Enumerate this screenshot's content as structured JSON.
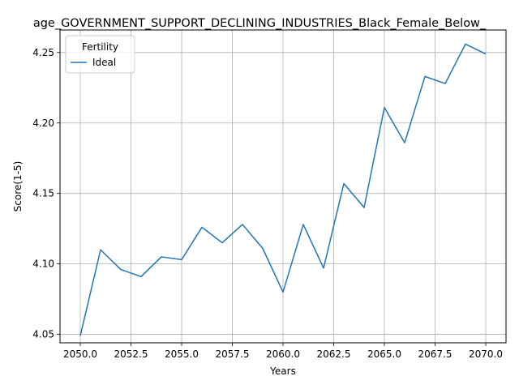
{
  "chart_data": {
    "type": "line",
    "title": "age_GOVERNMENT_SUPPORT_DECLINING_INDUSTRIES_Black_Female_Below_",
    "xlabel": "Years",
    "ylabel": "Score(1-5)",
    "xlim": [
      2049,
      2071
    ],
    "ylim": [
      4.044,
      4.266
    ],
    "xticks": [
      2050.0,
      2052.5,
      2055.0,
      2057.5,
      2060.0,
      2062.5,
      2065.0,
      2067.5,
      2070.0
    ],
    "xtick_labels": [
      "2050.0",
      "2052.5",
      "2055.0",
      "2057.5",
      "2060.0",
      "2062.5",
      "2065.0",
      "2067.5",
      "2070.0"
    ],
    "yticks": [
      4.05,
      4.1,
      4.15,
      4.2,
      4.25
    ],
    "ytick_labels": [
      "4.05",
      "4.10",
      "4.15",
      "4.20",
      "4.25"
    ],
    "grid": true,
    "legend": {
      "title": "Fertility",
      "placement": "top-left"
    },
    "series": [
      {
        "name": "Ideal",
        "color": "#1f77b4",
        "x": [
          2050,
          2051,
          2052,
          2053,
          2054,
          2055,
          2056,
          2057,
          2058,
          2059,
          2060,
          2061,
          2062,
          2063,
          2064,
          2065,
          2066,
          2067,
          2068,
          2069,
          2070
        ],
        "y": [
          4.049,
          4.11,
          4.096,
          4.091,
          4.105,
          4.103,
          4.126,
          4.115,
          4.128,
          4.111,
          4.08,
          4.128,
          4.097,
          4.157,
          4.14,
          4.211,
          4.186,
          4.233,
          4.228,
          4.256,
          4.249
        ]
      }
    ]
  }
}
